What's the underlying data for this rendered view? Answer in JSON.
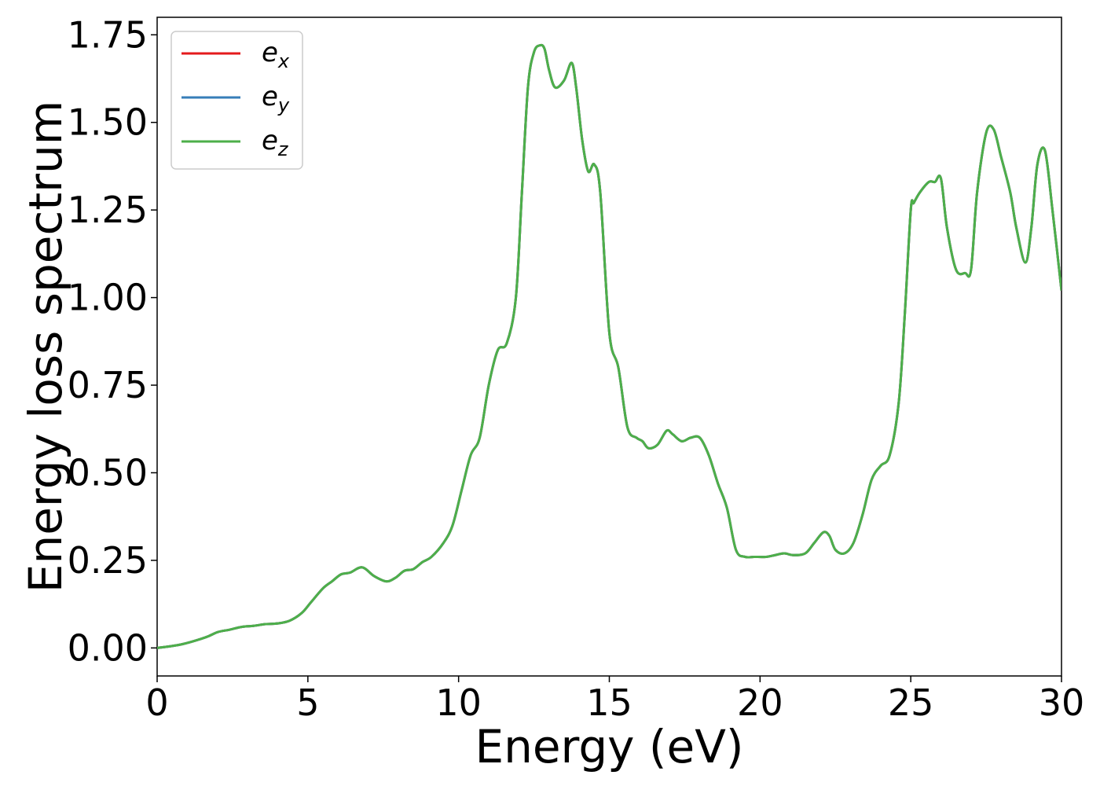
{
  "chart_data": {
    "type": "line",
    "title": "",
    "xlabel": "Energy (eV)",
    "ylabel": "Energy loss spectrum",
    "xlim": [
      0,
      30
    ],
    "ylim": [
      -0.08,
      1.8
    ],
    "xticks": [
      0,
      5,
      10,
      15,
      20,
      25,
      30
    ],
    "xtick_labels": [
      "0",
      "5",
      "10",
      "15",
      "20",
      "25",
      "30"
    ],
    "yticks": [
      0,
      0.25,
      0.5,
      0.75,
      1.0,
      1.25,
      1.5,
      1.75
    ],
    "ytick_labels": [
      "0.00",
      "0.25",
      "0.50",
      "0.75",
      "1.00",
      "1.25",
      "1.50",
      "1.75"
    ],
    "grid": false,
    "legend_position": "top-left",
    "series": [
      {
        "name": "e",
        "subscript": "x",
        "color": "#e41a1c",
        "x_ref": "x",
        "y_ref": "y"
      },
      {
        "name": "e",
        "subscript": "y",
        "color": "#377eb8",
        "x_ref": "x",
        "y_ref": "y"
      },
      {
        "name": "e",
        "subscript": "z",
        "color": "#4daf4a",
        "x_ref": "x",
        "y_ref": "y"
      }
    ],
    "x": [
      0,
      0.8,
      1.6,
      2.0,
      2.4,
      2.8,
      3.2,
      3.6,
      4.0,
      4.4,
      4.8,
      5.1,
      5.5,
      5.8,
      6.1,
      6.4,
      6.8,
      7.2,
      7.6,
      7.9,
      8.2,
      8.5,
      8.8,
      9.1,
      9.5,
      9.8,
      10.1,
      10.4,
      10.7,
      11.0,
      11.3,
      11.6,
      11.9,
      12.1,
      12.3,
      12.5,
      12.7,
      12.85,
      13.0,
      13.2,
      13.5,
      13.75,
      13.9,
      14.1,
      14.3,
      14.5,
      14.7,
      15.0,
      15.3,
      15.6,
      15.9,
      16.1,
      16.3,
      16.6,
      16.9,
      17.1,
      17.4,
      17.7,
      18.0,
      18.3,
      18.6,
      18.9,
      19.2,
      19.5,
      19.8,
      20.2,
      20.5,
      20.8,
      21.1,
      21.5,
      21.8,
      22.1,
      22.3,
      22.5,
      22.8,
      23.1,
      23.4,
      23.7,
      24.0,
      24.3,
      24.6,
      24.8,
      25.0,
      25.1,
      25.3,
      25.6,
      25.8,
      26.0,
      26.2,
      26.5,
      26.8,
      27.0,
      27.2,
      27.5,
      27.75,
      28.0,
      28.3,
      28.5,
      28.8,
      29.0,
      29.2,
      29.45,
      29.7,
      30.0
    ],
    "y": [
      0.0,
      0.01,
      0.03,
      0.045,
      0.052,
      0.06,
      0.063,
      0.068,
      0.07,
      0.078,
      0.1,
      0.13,
      0.17,
      0.19,
      0.21,
      0.215,
      0.23,
      0.205,
      0.19,
      0.2,
      0.22,
      0.225,
      0.245,
      0.26,
      0.3,
      0.35,
      0.45,
      0.55,
      0.6,
      0.75,
      0.85,
      0.87,
      1.0,
      1.3,
      1.6,
      1.7,
      1.72,
      1.71,
      1.65,
      1.6,
      1.62,
      1.67,
      1.6,
      1.45,
      1.36,
      1.38,
      1.3,
      0.9,
      0.8,
      0.63,
      0.6,
      0.59,
      0.57,
      0.58,
      0.62,
      0.61,
      0.59,
      0.6,
      0.6,
      0.55,
      0.47,
      0.4,
      0.28,
      0.26,
      0.26,
      0.26,
      0.265,
      0.27,
      0.265,
      0.27,
      0.3,
      0.33,
      0.32,
      0.28,
      0.27,
      0.3,
      0.38,
      0.48,
      0.52,
      0.55,
      0.7,
      0.95,
      1.25,
      1.27,
      1.3,
      1.33,
      1.33,
      1.34,
      1.2,
      1.08,
      1.07,
      1.08,
      1.3,
      1.47,
      1.48,
      1.4,
      1.3,
      1.2,
      1.1,
      1.2,
      1.38,
      1.42,
      1.25,
      1.02
    ]
  }
}
